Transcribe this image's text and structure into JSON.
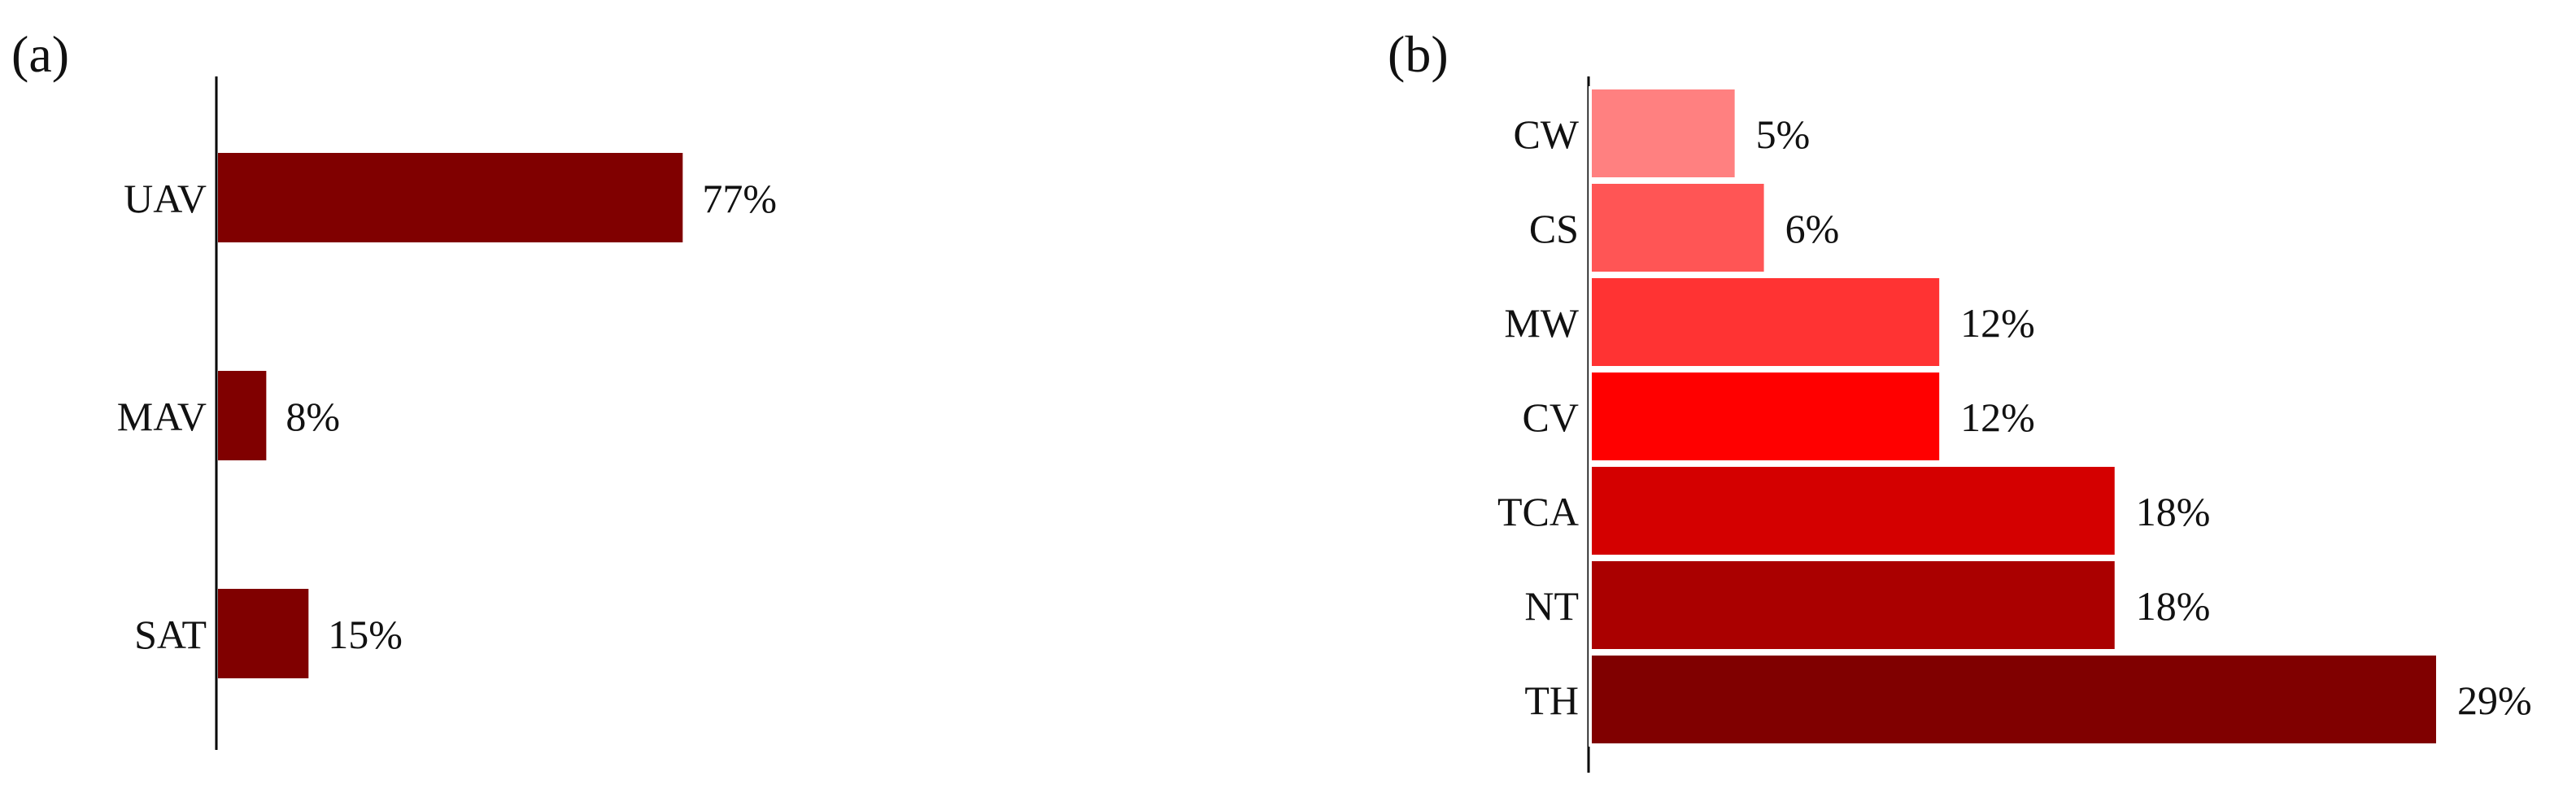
{
  "chart_data": [
    {
      "panel_label": "(a)",
      "type": "bar",
      "orientation": "horizontal",
      "categories": [
        "UAV",
        "MAV",
        "SAT"
      ],
      "values": [
        77,
        8,
        15
      ],
      "value_labels": [
        "77%",
        "8%",
        "15%"
      ],
      "colors": [
        "#800000",
        "#800000",
        "#800000"
      ],
      "unit": "%",
      "xlim": [
        0,
        100
      ],
      "grid": false,
      "title": "",
      "xlabel": "",
      "ylabel": ""
    },
    {
      "panel_label": "(b)",
      "type": "bar",
      "orientation": "horizontal",
      "categories": [
        "CW",
        "CS",
        "MW",
        "CV",
        "TCA",
        "NT",
        "TH"
      ],
      "values": [
        5,
        6,
        12,
        12,
        18,
        18,
        29
      ],
      "value_labels": [
        "5%",
        "6%",
        "12%",
        "12%",
        "18%",
        "18%",
        "29%"
      ],
      "colors": [
        "#ff8080",
        "#ff5555",
        "#ff3333",
        "#ff0000",
        "#d40000",
        "#aa0000",
        "#800000"
      ],
      "unit": "%",
      "xlim": [
        0,
        29
      ],
      "grid": false,
      "title": "",
      "xlabel": "",
      "ylabel": ""
    }
  ]
}
